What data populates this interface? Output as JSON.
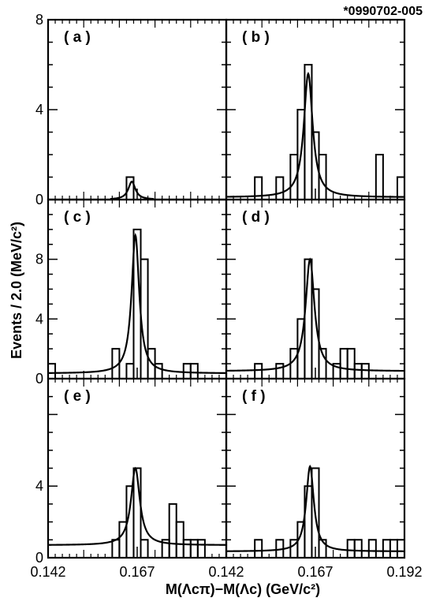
{
  "figure_id": "*0990702-005",
  "ylabel": "Events / 2.0 (MeV/c²)",
  "xlabel": "M(Λcπ)−M(Λc) (GeV/c²)",
  "chart_data": [
    {
      "type": "histogram+fit",
      "panel": "(a)",
      "xlim": [
        0.142,
        0.192
      ],
      "ylim": [
        0,
        8
      ],
      "yticks": [
        "0",
        "4",
        "8"
      ],
      "bin_width": 0.002,
      "bins_x": [
        0.164
      ],
      "bins_y": [
        1
      ],
      "fit": {
        "peak_x": 0.1655,
        "peak_y": 0.8,
        "width": 0.0012,
        "bg_y": 0.0
      }
    },
    {
      "type": "histogram+fit",
      "panel": "(b)",
      "xlim": [
        0.142,
        0.192
      ],
      "ylim": [
        0,
        8
      ],
      "yticks": [
        "0",
        "4"
      ],
      "bin_width": 0.002,
      "bins_x": [
        0.15,
        0.156,
        0.16,
        0.162,
        0.164,
        0.166,
        0.168,
        0.184,
        0.19
      ],
      "bins_y": [
        1,
        1,
        2,
        4,
        6,
        3,
        2,
        2,
        1
      ],
      "fit": {
        "peak_x": 0.165,
        "peak_y": 5.6,
        "width": 0.0015,
        "bg_y": 0.1
      }
    },
    {
      "type": "histogram+fit",
      "panel": "(c)",
      "xlim": [
        0.142,
        0.192
      ],
      "ylim": [
        0,
        12
      ],
      "yticks": [
        "0",
        "4",
        "8"
      ],
      "bin_width": 0.002,
      "bins_x": [
        0.142,
        0.16,
        0.164,
        0.166,
        0.168,
        0.17,
        0.172,
        0.18,
        0.182
      ],
      "bins_y": [
        1,
        2,
        1,
        10,
        8,
        2,
        1,
        1,
        1
      ],
      "fit": {
        "peak_x": 0.1665,
        "peak_y": 9.6,
        "width": 0.0013,
        "bg_y": 0.35
      }
    },
    {
      "type": "histogram+fit",
      "panel": "(d)",
      "xlim": [
        0.142,
        0.192
      ],
      "ylim": [
        0,
        12
      ],
      "yticks": [
        "0",
        "4",
        "8"
      ],
      "bin_width": 0.002,
      "bins_x": [
        0.15,
        0.156,
        0.16,
        0.162,
        0.164,
        0.166,
        0.168,
        0.172,
        0.174,
        0.176,
        0.178,
        0.18
      ],
      "bins_y": [
        1,
        1,
        2,
        4,
        8,
        6,
        2,
        1,
        2,
        2,
        1,
        1
      ],
      "fit": {
        "peak_x": 0.1655,
        "peak_y": 8.0,
        "width": 0.0015,
        "bg_y": 0.5
      }
    },
    {
      "type": "histogram+fit",
      "panel": "(e)",
      "xlim": [
        0.142,
        0.192
      ],
      "ylim": [
        0,
        10
      ],
      "yticks": [
        "0",
        "4"
      ],
      "bin_width": 0.002,
      "bins_x": [
        0.16,
        0.162,
        0.164,
        0.166,
        0.168,
        0.174,
        0.176,
        0.178,
        0.18,
        0.182,
        0.184
      ],
      "bins_y": [
        1,
        2,
        4,
        5,
        1,
        1,
        3,
        2,
        1,
        1,
        1
      ],
      "fit": {
        "peak_x": 0.1665,
        "peak_y": 5.0,
        "width": 0.0015,
        "bg_y": 0.7
      }
    },
    {
      "type": "histogram+fit",
      "panel": "(f)",
      "xlim": [
        0.142,
        0.192
      ],
      "ylim": [
        0,
        10
      ],
      "yticks": [
        "0",
        "4"
      ],
      "bin_width": 0.002,
      "bins_x": [
        0.15,
        0.156,
        0.16,
        0.162,
        0.164,
        0.166,
        0.168,
        0.176,
        0.178,
        0.182,
        0.186,
        0.188,
        0.19
      ],
      "bins_y": [
        1,
        1,
        1,
        2,
        4,
        5,
        1,
        1,
        1,
        1,
        1,
        1,
        1
      ],
      "fit": {
        "peak_x": 0.1655,
        "peak_y": 5.1,
        "width": 0.0013,
        "bg_y": 0.35
      }
    }
  ],
  "xticks": {
    "left": [
      "0.142",
      "0.167"
    ],
    "right": [
      "0.142",
      "0.167",
      "0.192"
    ]
  }
}
